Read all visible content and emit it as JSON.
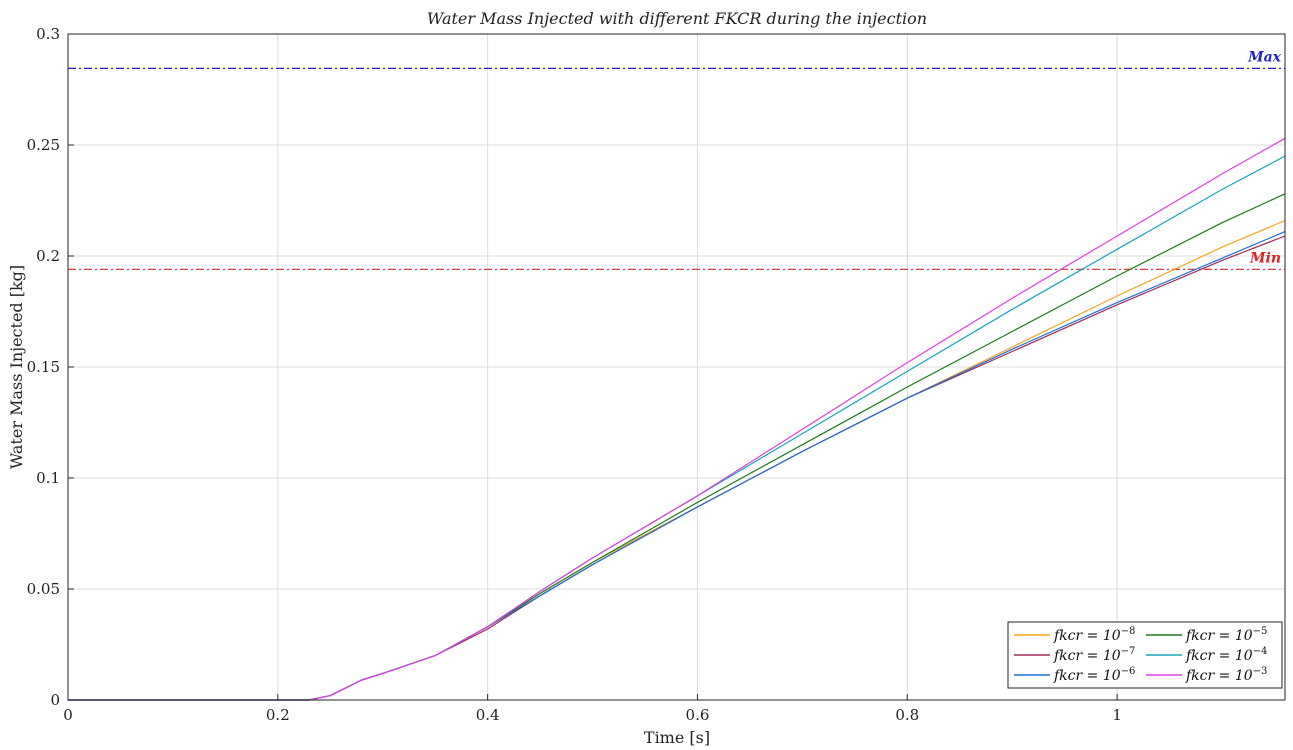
{
  "chart_data": {
    "type": "line",
    "title": "Water Mass Injected with different FKCR during the injection",
    "xlabel": "Time [s]",
    "ylabel": "Water Mass Injected [kg]",
    "xlim": [
      0,
      1.16
    ],
    "ylim": [
      0,
      0.3
    ],
    "grid": true,
    "x_ticks": [
      0,
      0.2,
      0.4,
      0.6,
      0.8,
      1
    ],
    "x_tick_labels": [
      "0",
      "0.2",
      "0.4",
      "0.6",
      "0.8",
      "1"
    ],
    "y_ticks": [
      0,
      0.05,
      0.1,
      0.15,
      0.2,
      0.25,
      0.3
    ],
    "y_tick_labels": [
      "0",
      "0.05",
      "0.1",
      "0.15",
      "0.2",
      "0.25",
      "0.3"
    ],
    "reference_lines": [
      {
        "label": "Max",
        "y": 0.2845,
        "color": "#2222cc"
      },
      {
        "label": "Min",
        "y": 0.194,
        "color": "#dd2222"
      }
    ],
    "legend_position": "bottom-right",
    "series": [
      {
        "name": "fkcr = 10^-8",
        "base": "fkcr = 10",
        "exp": "−8",
        "color": "#f5a623",
        "x": [
          0,
          0.23,
          0.25,
          0.28,
          0.3,
          0.35,
          0.4,
          0.45,
          0.5,
          0.6,
          0.7,
          0.8,
          0.9,
          1.0,
          1.1,
          1.16
        ],
        "y": [
          0,
          0,
          0.002,
          0.009,
          0.012,
          0.02,
          0.033,
          0.048,
          0.062,
          0.087,
          0.112,
          0.136,
          0.159,
          0.182,
          0.204,
          0.216
        ]
      },
      {
        "name": "fkcr = 10^-7",
        "base": "fkcr = 10",
        "exp": "−7",
        "color": "#a02c5a",
        "x": [
          0,
          0.23,
          0.25,
          0.28,
          0.3,
          0.35,
          0.4,
          0.45,
          0.5,
          0.6,
          0.7,
          0.8,
          0.9,
          1.0,
          1.1,
          1.16
        ],
        "y": [
          0,
          0,
          0.002,
          0.009,
          0.012,
          0.02,
          0.032,
          0.047,
          0.061,
          0.087,
          0.112,
          0.136,
          0.157,
          0.178,
          0.198,
          0.209
        ]
      },
      {
        "name": "fkcr = 10^-6",
        "base": "fkcr = 10",
        "exp": "−6",
        "color": "#1f6fd6",
        "x": [
          0,
          0.23,
          0.25,
          0.28,
          0.3,
          0.35,
          0.4,
          0.45,
          0.5,
          0.6,
          0.7,
          0.8,
          0.9,
          1.0,
          1.1,
          1.16
        ],
        "y": [
          0,
          0,
          0.002,
          0.009,
          0.012,
          0.02,
          0.033,
          0.047,
          0.061,
          0.087,
          0.112,
          0.136,
          0.158,
          0.179,
          0.199,
          0.211
        ]
      },
      {
        "name": "fkcr = 10^-5",
        "base": "fkcr = 10",
        "exp": "−5",
        "color": "#1e7a1e",
        "x": [
          0,
          0.23,
          0.25,
          0.28,
          0.3,
          0.35,
          0.4,
          0.45,
          0.5,
          0.6,
          0.7,
          0.8,
          0.9,
          1.0,
          1.1,
          1.16
        ],
        "y": [
          0,
          0,
          0.002,
          0.009,
          0.012,
          0.02,
          0.033,
          0.048,
          0.062,
          0.089,
          0.115,
          0.141,
          0.166,
          0.191,
          0.215,
          0.228
        ]
      },
      {
        "name": "fkcr = 10^-4",
        "base": "fkcr = 10",
        "exp": "−4",
        "color": "#17a5b8",
        "x": [
          0,
          0.23,
          0.25,
          0.28,
          0.3,
          0.35,
          0.4,
          0.45,
          0.5,
          0.6,
          0.7,
          0.8,
          0.9,
          1.0,
          1.1,
          1.16
        ],
        "y": [
          0,
          0,
          0.002,
          0.009,
          0.012,
          0.02,
          0.033,
          0.049,
          0.064,
          0.092,
          0.12,
          0.148,
          0.176,
          0.203,
          0.23,
          0.245
        ]
      },
      {
        "name": "fkcr = 10^-3",
        "base": "fkcr = 10",
        "exp": "−3",
        "color": "#e040e0",
        "x": [
          0,
          0.23,
          0.25,
          0.28,
          0.3,
          0.35,
          0.4,
          0.45,
          0.5,
          0.6,
          0.7,
          0.8,
          0.9,
          1.0,
          1.1,
          1.16
        ],
        "y": [
          0,
          0,
          0.002,
          0.009,
          0.012,
          0.02,
          0.033,
          0.049,
          0.064,
          0.092,
          0.122,
          0.152,
          0.181,
          0.209,
          0.237,
          0.253
        ]
      }
    ]
  }
}
